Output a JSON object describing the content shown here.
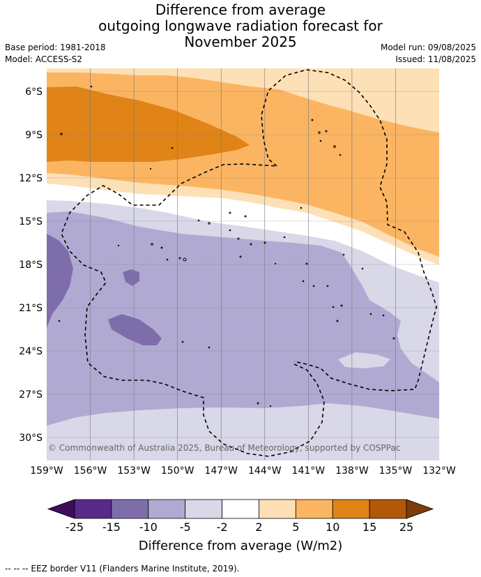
{
  "title_lines": [
    "Difference from average",
    "outgoing longwave radiation forecast for",
    "November 2025"
  ],
  "meta_left": {
    "base_period": "Base period: 1981-2018",
    "model": "Model: ACCESS-S2"
  },
  "meta_right": {
    "model_run": "Model run: 09/08/2025",
    "issued": "Issued: 11/08/2025"
  },
  "map": {
    "lon_labels": [
      "159°W",
      "156°W",
      "153°W",
      "150°W",
      "147°W",
      "144°W",
      "141°W",
      "138°W",
      "135°W",
      "132°W"
    ],
    "lat_labels": [
      "6°S",
      "9°S",
      "12°S",
      "15°S",
      "18°S",
      "21°S",
      "24°S",
      "27°S",
      "30°S"
    ],
    "copyright": "© Commonwealth of Australia 2025, Bureau of Meteorology, supported by COSPPac"
  },
  "legend": {
    "title": "Difference from average (W/m2)",
    "ticks": [
      "-25",
      "-15",
      "-10",
      "-5",
      "-2",
      "2",
      "5",
      "10",
      "15",
      "25"
    ],
    "colors": [
      "#3f0d5c",
      "#5a2a8a",
      "#7d6eab",
      "#b0aad2",
      "#d8d8e8",
      "#ffffff",
      "#fde0b6",
      "#fbb562",
      "#e08418",
      "#b35808",
      "#7f3b08"
    ]
  },
  "footnote": "--  --  -- EEZ border V11 (Flanders Marine Institute, 2019)."
}
